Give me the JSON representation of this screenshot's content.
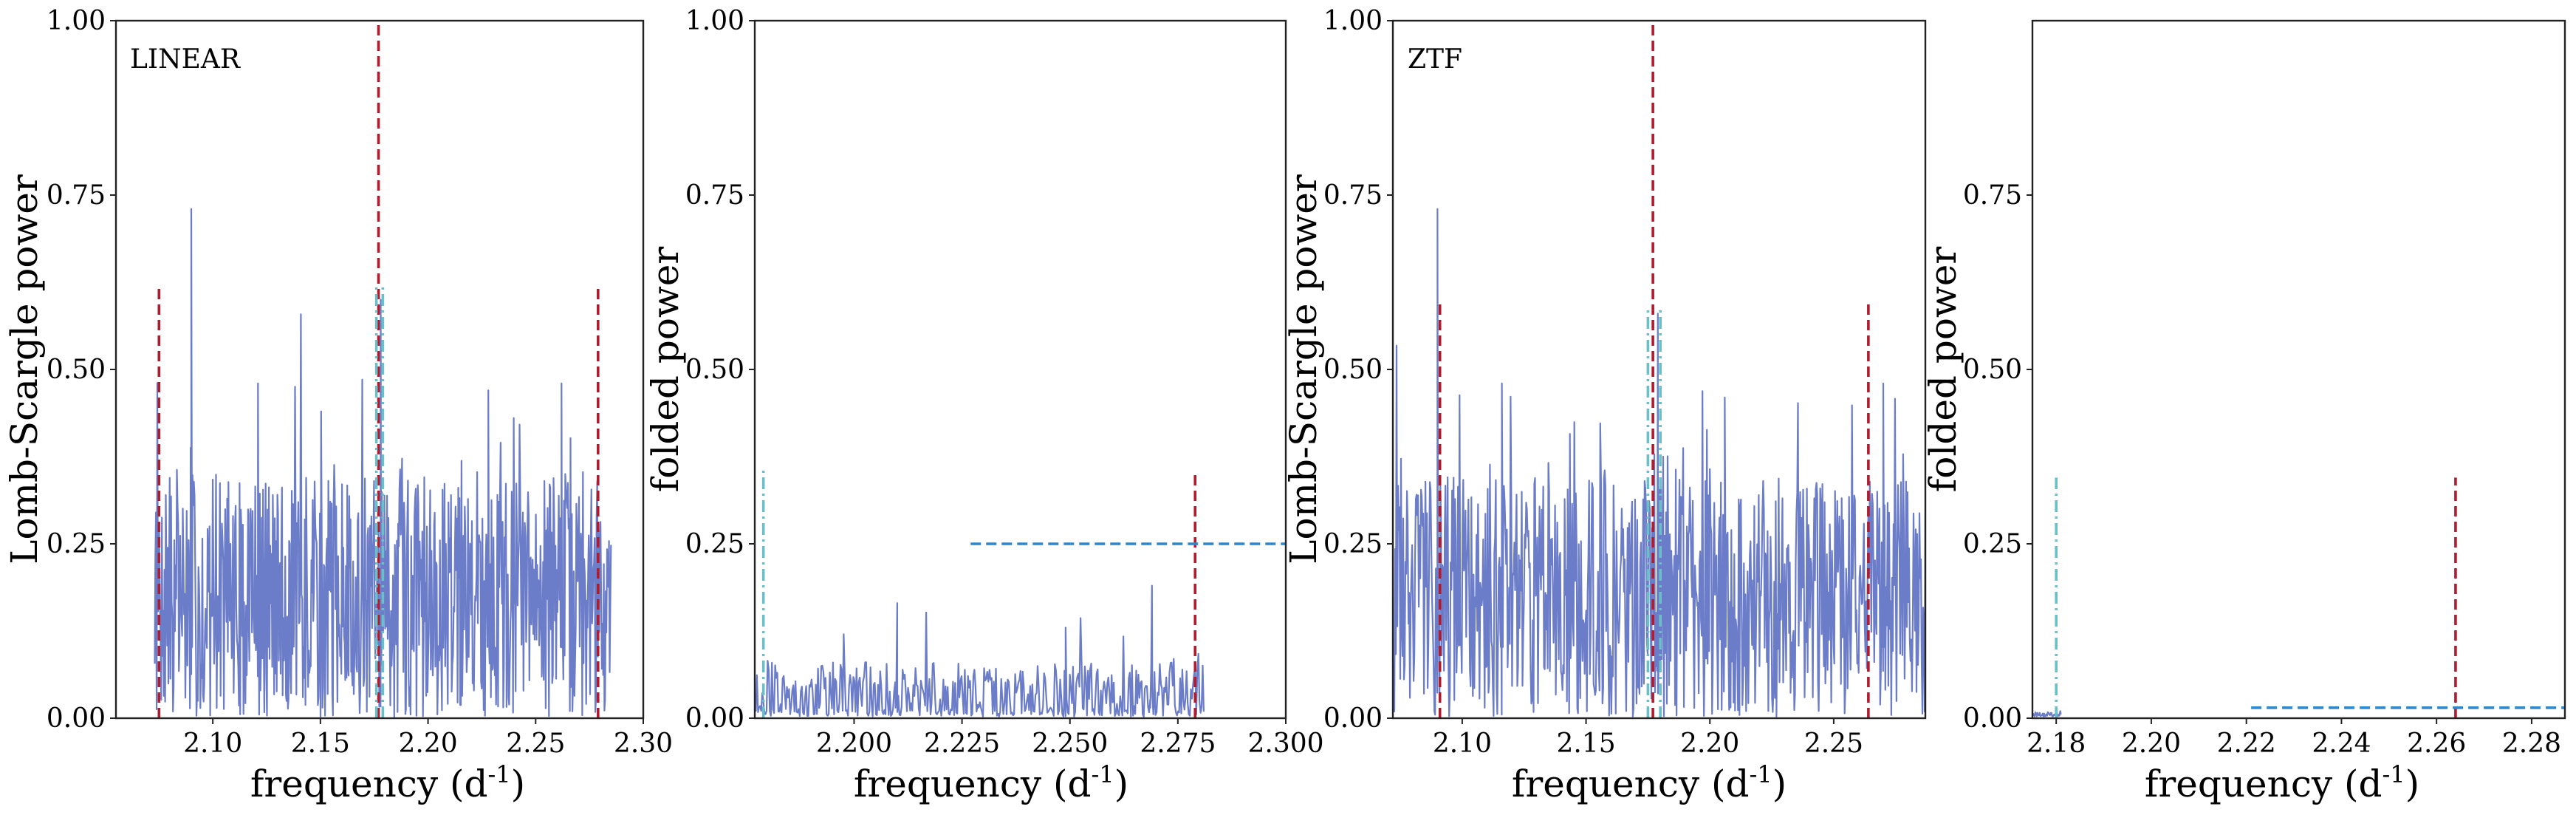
{
  "chart_data": [
    {
      "type": "line",
      "label": "LINEAR",
      "xlabel": "frequency (d$^{-1}$)",
      "ylabel": "Lomb-Scargle power",
      "xlim": [
        2.055,
        2.3
      ],
      "ylim": [
        0.0,
        1.0
      ],
      "xticks": [
        2.1,
        2.15,
        2.2,
        2.25,
        2.3
      ],
      "yticks": [
        0.0,
        0.25,
        0.5,
        0.75,
        1.0
      ],
      "series_color": "#6b7cc8",
      "noise": {
        "x_start": 2.073,
        "x_end": 2.285,
        "base": 0.17,
        "amp": 0.22,
        "count": 700,
        "seed": 7
      },
      "peaks": [
        {
          "x": 2.09,
          "y": 0.73
        },
        {
          "x": 2.178,
          "y": 0.6
        },
        {
          "x": 2.121,
          "y": 0.48
        },
        {
          "x": 2.262,
          "y": 0.48
        },
        {
          "x": 2.228,
          "y": 0.47
        }
      ],
      "vlines": [
        {
          "x": 2.075,
          "y0": 0.0,
          "y1": 0.62,
          "color": "#b01c2e",
          "style": "dashed"
        },
        {
          "x": 2.177,
          "y0": 0.0,
          "y1": 1.0,
          "color": "#b01c2e",
          "style": "dashed"
        },
        {
          "x": 2.279,
          "y0": 0.0,
          "y1": 0.62,
          "color": "#b01c2e",
          "style": "dashed"
        },
        {
          "x": 2.176,
          "y0": 0.0,
          "y1": 0.62,
          "color": "#6bbfc9",
          "style": "dashdot"
        },
        {
          "x": 2.179,
          "y0": 0.0,
          "y1": 0.62,
          "color": "#6bbfc9",
          "style": "dashdot"
        }
      ],
      "hlines": []
    },
    {
      "type": "line",
      "label": "",
      "xlabel": "frequency (d$^{-1}$)",
      "ylabel": "folded power",
      "xlim": [
        2.177,
        2.3
      ],
      "ylim": [
        0.0,
        1.0
      ],
      "xticks": [
        2.2,
        2.225,
        2.25,
        2.275,
        2.3
      ],
      "yticks": [
        0.0,
        0.25,
        0.5,
        0.75,
        1.0
      ],
      "series_color": "#6b7cc8",
      "noise": {
        "x_start": 2.177,
        "x_end": 2.281,
        "base": 0.025,
        "amp": 0.07,
        "count": 420,
        "seed": 19
      },
      "peps": [],
      "peaks": [
        {
          "x": 2.21,
          "y": 0.165
        },
        {
          "x": 2.269,
          "y": 0.19
        },
        {
          "x": 2.249,
          "y": 0.13
        }
      ],
      "vlines": [
        {
          "x": 2.179,
          "y0": 0.0,
          "y1": 0.355,
          "color": "#6bbfc9",
          "style": "dashdot"
        },
        {
          "x": 2.279,
          "y0": 0.0,
          "y1": 0.355,
          "color": "#b01c2e",
          "style": "dashed"
        }
      ],
      "hlines": [
        {
          "y": 0.25,
          "x0": 2.227,
          "x1": 2.3,
          "color": "#2f86c8",
          "style": "dashed"
        }
      ]
    },
    {
      "type": "line",
      "label": "ZTF",
      "xlabel": "frequency (d$^{-1}$)",
      "ylabel": "Lomb-Scargle power",
      "xlim": [
        2.072,
        2.287
      ],
      "ylim": [
        0.0,
        1.0
      ],
      "xticks": [
        2.1,
        2.15,
        2.2,
        2.25
      ],
      "yticks": [
        0.0,
        0.25,
        0.5,
        0.75,
        1.0
      ],
      "series_color": "#6b7cc8",
      "noise": {
        "x_start": 2.072,
        "x_end": 2.287,
        "base": 0.17,
        "amp": 0.22,
        "count": 720,
        "seed": 31
      },
      "peaks": [
        {
          "x": 2.09,
          "y": 0.73
        },
        {
          "x": 2.179,
          "y": 0.58
        },
        {
          "x": 2.116,
          "y": 0.48
        },
        {
          "x": 2.27,
          "y": 0.48
        },
        {
          "x": 2.206,
          "y": 0.46
        }
      ],
      "vlines": [
        {
          "x": 2.091,
          "y0": 0.0,
          "y1": 0.6,
          "color": "#b01c2e",
          "style": "dashed"
        },
        {
          "x": 2.177,
          "y0": 0.0,
          "y1": 1.0,
          "color": "#b01c2e",
          "style": "dashed"
        },
        {
          "x": 2.264,
          "y0": 0.0,
          "y1": 0.6,
          "color": "#b01c2e",
          "style": "dashed"
        },
        {
          "x": 2.175,
          "y0": 0.0,
          "y1": 0.59,
          "color": "#6bbfc9",
          "style": "dashdot"
        },
        {
          "x": 2.18,
          "y0": 0.0,
          "y1": 0.59,
          "color": "#6bbfc9",
          "style": "dashdot"
        }
      ],
      "hlines": []
    },
    {
      "type": "line",
      "label": "",
      "xlabel": "frequency (d$^{-1}$)",
      "ylabel": "folded power",
      "xlim": [
        2.175,
        2.287
      ],
      "ylim": [
        0.0,
        1.0
      ],
      "xticks": [
        2.18,
        2.2,
        2.22,
        2.24,
        2.26,
        2.28
      ],
      "yticks": [
        0.0,
        0.25,
        0.5,
        0.75
      ],
      "series_color": "#6b7cc8",
      "noise": {
        "x_start": 2.175,
        "x_end": 2.181,
        "base": 0.003,
        "amp": 0.006,
        "count": 40,
        "seed": 5
      },
      "peaks": [],
      "vlines": [
        {
          "x": 2.18,
          "y0": 0.0,
          "y1": 0.345,
          "color": "#6bbfc9",
          "style": "dashdot"
        },
        {
          "x": 2.264,
          "y0": 0.0,
          "y1": 0.345,
          "color": "#b01c2e",
          "style": "dashed"
        }
      ],
      "hlines": [
        {
          "y": 0.015,
          "x0": 2.221,
          "x1": 2.287,
          "color": "#2f86c8",
          "style": "dashed"
        }
      ]
    }
  ]
}
